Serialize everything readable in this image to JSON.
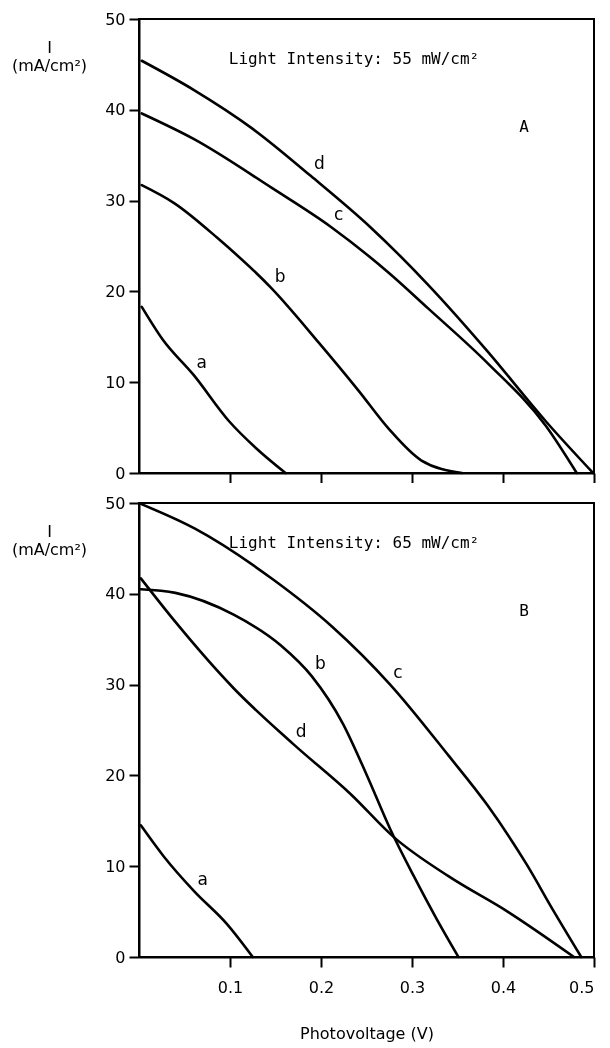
{
  "chart_data": [
    {
      "type": "line",
      "ylabel": "I (mA/cm²)",
      "annotations": [
        "Light Intensity: 55 mW/cm²",
        "A"
      ],
      "xlim": [
        0,
        0.5
      ],
      "xticks": [
        0.1,
        0.2,
        0.3,
        0.4,
        0.5
      ],
      "ylim": [
        0,
        50
      ],
      "yticks": [
        0,
        10,
        20,
        30,
        40,
        50
      ],
      "tick_labels": "y",
      "grid": false,
      "line_style": "solid",
      "series": [
        {
          "name": "a",
          "color": "#000000",
          "x": [
            0.003,
            0.026,
            0.06,
            0.099,
            0.129,
            0.161
          ],
          "values": [
            18.3,
            14.7,
            10.8,
            5.7,
            2.7,
            0
          ]
        },
        {
          "name": "b",
          "color": "#000000",
          "x": [
            0.003,
            0.039,
            0.086,
            0.146,
            0.198,
            0.241,
            0.275,
            0.31,
            0.355
          ],
          "values": [
            31.7,
            29.7,
            25.9,
            20.3,
            14.3,
            9.1,
            4.8,
            1.4,
            0
          ]
        },
        {
          "name": "c",
          "color": "#000000",
          "x": [
            0.003,
            0.06,
            0.146,
            0.211,
            0.275,
            0.318,
            0.383,
            0.447,
            0.481
          ],
          "values": [
            39.6,
            36.8,
            31.4,
            27.1,
            22.0,
            18.1,
            12.1,
            5.2,
            0
          ]
        },
        {
          "name": "d",
          "color": "#000000",
          "x": [
            0.003,
            0.06,
            0.125,
            0.189,
            0.254,
            0.318,
            0.383,
            0.447,
            0.499
          ],
          "values": [
            45.4,
            42.2,
            37.9,
            32.7,
            27.1,
            20.7,
            13.4,
            5.7,
            0
          ]
        }
      ]
    },
    {
      "type": "line",
      "xlabel": "Photovoltage (V)",
      "ylabel": "I (mA/cm²)",
      "annotations": [
        "Light Intensity: 65 mW/cm²",
        "B"
      ],
      "xlim": [
        0,
        0.5
      ],
      "xticks": [
        0.1,
        0.2,
        0.3,
        0.4,
        0.5
      ],
      "ylim": [
        0,
        50
      ],
      "yticks": [
        0,
        10,
        20,
        30,
        40,
        50
      ],
      "grid": false,
      "line_style": "solid",
      "series": [
        {
          "name": "a",
          "color": "#000000",
          "x": [
            0.002,
            0.027,
            0.061,
            0.096,
            0.125
          ],
          "values": [
            14.5,
            11.1,
            7.2,
            3.7,
            0
          ]
        },
        {
          "name": "b",
          "color": "#000000",
          "x": [
            0.002,
            0.04,
            0.104,
            0.156,
            0.19,
            0.224,
            0.25,
            0.276,
            0.302,
            0.327,
            0.351
          ],
          "values": [
            40.5,
            40.1,
            37.7,
            34.3,
            30.9,
            25.7,
            20.1,
            14.1,
            8.9,
            4.2,
            0
          ]
        },
        {
          "name": "c",
          "color": "#000000",
          "x": [
            0.002,
            0.061,
            0.147,
            0.212,
            0.276,
            0.34,
            0.383,
            0.426,
            0.456,
            0.486
          ],
          "values": [
            49.9,
            47.2,
            41.6,
            36.4,
            30.0,
            22.2,
            16.7,
            10.2,
            5.0,
            0
          ]
        },
        {
          "name": "d",
          "color": "#000000",
          "x": [
            0.002,
            0.04,
            0.104,
            0.169,
            0.233,
            0.28,
            0.34,
            0.405,
            0.478
          ],
          "values": [
            41.7,
            36.9,
            29.6,
            23.5,
            17.9,
            13.2,
            8.9,
            5.0,
            0
          ]
        }
      ]
    }
  ]
}
